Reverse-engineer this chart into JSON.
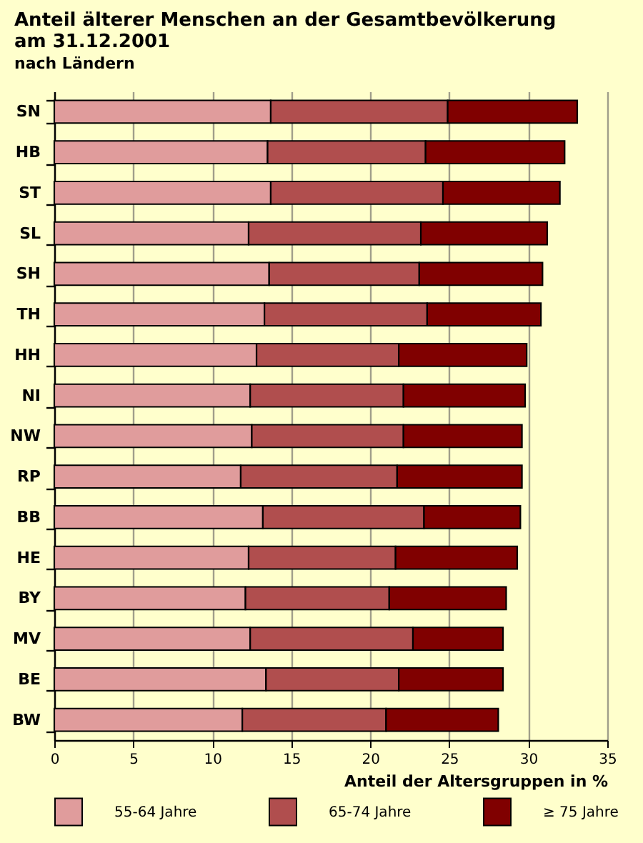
{
  "chart_data": {
    "type": "bar",
    "orientation": "horizontal",
    "stacked": true,
    "title": "Anteil älterer Menschen an der Gesamtbevölkerung am 31.12.2001",
    "subtitle": "nach Ländern",
    "xlabel": "Anteil der Altersgruppen in %",
    "categories": [
      "SN",
      "HB",
      "ST",
      "SL",
      "SH",
      "TH",
      "HH",
      "NI",
      "NW",
      "RP",
      "BB",
      "HE",
      "BY",
      "MV",
      "BE",
      "BW"
    ],
    "series": [
      {
        "name": "55-64 Jahre",
        "color": "#e09c9c",
        "values": [
          13.7,
          13.5,
          13.7,
          12.3,
          13.6,
          13.3,
          12.8,
          12.4,
          12.5,
          11.8,
          13.2,
          12.3,
          12.1,
          12.4,
          13.4,
          11.9
        ]
      },
      {
        "name": "65-74 Jahre",
        "color": "#b04e4e",
        "values": [
          11.2,
          10.0,
          10.9,
          10.9,
          9.5,
          10.3,
          9.0,
          9.7,
          9.6,
          9.9,
          10.2,
          9.3,
          9.1,
          10.3,
          8.4,
          9.1
        ]
      },
      {
        "name": "≥ 75 Jahre",
        "color": "#800000",
        "values": [
          8.2,
          8.8,
          7.4,
          8.0,
          7.8,
          7.2,
          8.1,
          7.7,
          7.5,
          7.9,
          6.1,
          7.7,
          7.4,
          5.7,
          6.6,
          7.1
        ]
      }
    ],
    "xlim": [
      0,
      35
    ],
    "xticks": [
      0,
      5,
      10,
      15,
      20,
      25,
      30,
      35
    ],
    "grid": "x",
    "legend": "bottom"
  }
}
